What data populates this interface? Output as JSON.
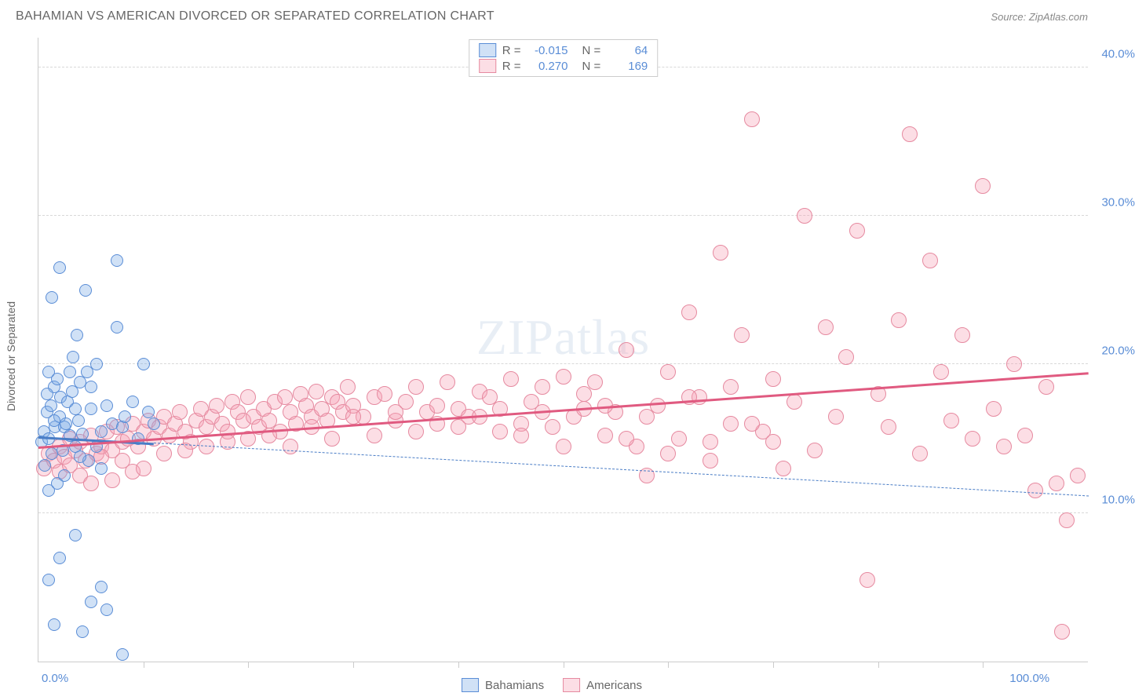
{
  "header": {
    "title": "BAHAMIAN VS AMERICAN DIVORCED OR SEPARATED CORRELATION CHART",
    "source_prefix": "Source: ",
    "source": "ZipAtlas.com"
  },
  "chart": {
    "type": "scatter",
    "ylabel": "Divorced or Separated",
    "watermark": "ZIPatlas",
    "background_color": "#ffffff",
    "grid_color": "#d8d8d8",
    "axis_color": "#cccccc",
    "tick_label_color": "#5a8dd6",
    "xlim": [
      0,
      100
    ],
    "ylim": [
      0,
      42
    ],
    "yticks": [
      {
        "value": 10,
        "label": "10.0%"
      },
      {
        "value": 20,
        "label": "20.0%"
      },
      {
        "value": 30,
        "label": "30.0%"
      },
      {
        "value": 40,
        "label": "40.0%"
      }
    ],
    "xticks_minor": [
      10,
      20,
      30,
      40,
      50,
      60,
      70,
      80,
      90
    ],
    "xtick_left": "0.0%",
    "xtick_right": "100.0%",
    "series": {
      "bahamians": {
        "label": "Bahamians",
        "color_fill": "rgba(120,170,230,0.35)",
        "color_stroke": "#5a8dd6",
        "marker_radius": 8,
        "r_value": "-0.015",
        "n_value": "64",
        "trend": {
          "y_at_x0": 15.2,
          "y_at_x100": 11.2,
          "solid_until_x": 11,
          "color": "#4a7dc6"
        },
        "points": [
          [
            0.3,
            14.8
          ],
          [
            0.5,
            15.5
          ],
          [
            0.6,
            13.2
          ],
          [
            0.8,
            16.8
          ],
          [
            1.0,
            15.0
          ],
          [
            1.2,
            17.2
          ],
          [
            1.3,
            14.0
          ],
          [
            1.5,
            18.5
          ],
          [
            1.6,
            15.8
          ],
          [
            1.8,
            19.0
          ],
          [
            2.0,
            16.5
          ],
          [
            2.1,
            17.8
          ],
          [
            2.3,
            14.2
          ],
          [
            2.5,
            15.8
          ],
          [
            2.6,
            16.0
          ],
          [
            2.8,
            17.5
          ],
          [
            3.0,
            15.2
          ],
          [
            3.2,
            18.2
          ],
          [
            3.3,
            20.5
          ],
          [
            3.5,
            14.5
          ],
          [
            3.7,
            22.0
          ],
          [
            3.8,
            16.2
          ],
          [
            4.0,
            18.8
          ],
          [
            4.2,
            15.3
          ],
          [
            4.5,
            25.0
          ],
          [
            4.6,
            19.5
          ],
          [
            4.8,
            13.5
          ],
          [
            5.0,
            17.0
          ],
          [
            0.8,
            18.0
          ],
          [
            1.0,
            19.5
          ],
          [
            1.3,
            24.5
          ],
          [
            1.5,
            16.2
          ],
          [
            2.0,
            26.5
          ],
          [
            3.5,
            17.0
          ],
          [
            4.0,
            13.8
          ],
          [
            1.0,
            11.5
          ],
          [
            1.8,
            12.0
          ],
          [
            5.5,
            14.5
          ],
          [
            6.0,
            15.5
          ],
          [
            6.5,
            17.2
          ],
          [
            7.0,
            16.0
          ],
          [
            7.5,
            27.0
          ],
          [
            8.0,
            15.8
          ],
          [
            8.2,
            16.5
          ],
          [
            9.0,
            17.5
          ],
          [
            9.5,
            15.0
          ],
          [
            10.0,
            20.0
          ],
          [
            10.5,
            16.8
          ],
          [
            11.0,
            16.0
          ],
          [
            5.0,
            18.5
          ],
          [
            5.5,
            20.0
          ],
          [
            6.0,
            13.0
          ],
          [
            2.5,
            12.5
          ],
          [
            1.0,
            5.5
          ],
          [
            2.0,
            7.0
          ],
          [
            3.5,
            8.5
          ],
          [
            5.0,
            4.0
          ],
          [
            6.0,
            5.0
          ],
          [
            6.5,
            3.5
          ],
          [
            8.0,
            0.5
          ],
          [
            1.5,
            2.5
          ],
          [
            4.2,
            2.0
          ],
          [
            3.0,
            19.5
          ],
          [
            7.5,
            22.5
          ]
        ]
      },
      "americans": {
        "label": "Americans",
        "color_fill": "rgba(245,160,180,0.35)",
        "color_stroke": "#e68aa0",
        "marker_radius": 10,
        "r_value": "0.270",
        "n_value": "169",
        "trend": {
          "y_at_x0": 14.5,
          "y_at_x100": 19.5,
          "color": "#e05a80"
        },
        "points": [
          [
            0.5,
            13.0
          ],
          [
            1.0,
            14.0
          ],
          [
            1.5,
            13.5
          ],
          [
            2.0,
            14.5
          ],
          [
            2.5,
            13.8
          ],
          [
            3.0,
            15.0
          ],
          [
            3.5,
            14.2
          ],
          [
            4.0,
            14.8
          ],
          [
            4.5,
            13.5
          ],
          [
            5.0,
            15.2
          ],
          [
            5.5,
            14.0
          ],
          [
            6.0,
            14.5
          ],
          [
            6.5,
            15.5
          ],
          [
            7.0,
            14.2
          ],
          [
            7.5,
            15.8
          ],
          [
            8.0,
            14.8
          ],
          [
            8.5,
            15.0
          ],
          [
            9.0,
            16.0
          ],
          [
            9.5,
            14.5
          ],
          [
            10.0,
            15.5
          ],
          [
            10.5,
            16.2
          ],
          [
            11.0,
            15.0
          ],
          [
            11.5,
            15.8
          ],
          [
            12.0,
            16.5
          ],
          [
            12.5,
            15.2
          ],
          [
            13.0,
            16.0
          ],
          [
            13.5,
            16.8
          ],
          [
            14.0,
            15.5
          ],
          [
            14.5,
            14.8
          ],
          [
            15.0,
            16.2
          ],
          [
            15.5,
            17.0
          ],
          [
            16.0,
            15.8
          ],
          [
            16.5,
            16.5
          ],
          [
            17.0,
            17.2
          ],
          [
            17.5,
            16.0
          ],
          [
            18.0,
            15.5
          ],
          [
            18.5,
            17.5
          ],
          [
            19.0,
            16.8
          ],
          [
            19.5,
            16.2
          ],
          [
            20.0,
            17.8
          ],
          [
            20.5,
            16.5
          ],
          [
            21.0,
            15.8
          ],
          [
            21.5,
            17.0
          ],
          [
            22.0,
            16.2
          ],
          [
            22.5,
            17.5
          ],
          [
            23.0,
            15.5
          ],
          [
            23.5,
            17.8
          ],
          [
            24.0,
            16.8
          ],
          [
            24.5,
            16.0
          ],
          [
            25.0,
            18.0
          ],
          [
            25.5,
            17.2
          ],
          [
            26.0,
            16.5
          ],
          [
            26.5,
            18.2
          ],
          [
            27.0,
            17.0
          ],
          [
            27.5,
            16.2
          ],
          [
            28.0,
            17.8
          ],
          [
            28.5,
            17.5
          ],
          [
            29.0,
            16.8
          ],
          [
            29.5,
            18.5
          ],
          [
            30.0,
            17.2
          ],
          [
            31.0,
            16.5
          ],
          [
            32.0,
            17.8
          ],
          [
            33.0,
            18.0
          ],
          [
            34.0,
            16.2
          ],
          [
            35.0,
            17.5
          ],
          [
            36.0,
            18.5
          ],
          [
            37.0,
            16.8
          ],
          [
            38.0,
            17.2
          ],
          [
            39.0,
            18.8
          ],
          [
            40.0,
            17.0
          ],
          [
            41.0,
            16.5
          ],
          [
            42.0,
            18.2
          ],
          [
            43.0,
            17.8
          ],
          [
            44.0,
            15.5
          ],
          [
            45.0,
            19.0
          ],
          [
            46.0,
            16.0
          ],
          [
            47.0,
            17.5
          ],
          [
            48.0,
            18.5
          ],
          [
            49.0,
            15.8
          ],
          [
            50.0,
            19.2
          ],
          [
            51.0,
            16.5
          ],
          [
            52.0,
            17.0
          ],
          [
            53.0,
            18.8
          ],
          [
            54.0,
            15.2
          ],
          [
            55.0,
            16.8
          ],
          [
            56.0,
            21.0
          ],
          [
            57.0,
            14.5
          ],
          [
            58.0,
            12.5
          ],
          [
            59.0,
            17.2
          ],
          [
            60.0,
            19.5
          ],
          [
            61.0,
            15.0
          ],
          [
            62.0,
            23.5
          ],
          [
            63.0,
            17.8
          ],
          [
            64.0,
            14.8
          ],
          [
            65.0,
            27.5
          ],
          [
            66.0,
            16.0
          ],
          [
            67.0,
            22.0
          ],
          [
            68.0,
            36.5
          ],
          [
            69.0,
            15.5
          ],
          [
            70.0,
            19.0
          ],
          [
            71.0,
            13.0
          ],
          [
            72.0,
            17.5
          ],
          [
            73.0,
            30.0
          ],
          [
            74.0,
            14.2
          ],
          [
            75.0,
            22.5
          ],
          [
            76.0,
            16.5
          ],
          [
            77.0,
            20.5
          ],
          [
            78.0,
            29.0
          ],
          [
            79.0,
            5.5
          ],
          [
            80.0,
            18.0
          ],
          [
            81.0,
            15.8
          ],
          [
            82.0,
            23.0
          ],
          [
            83.0,
            35.5
          ],
          [
            84.0,
            14.0
          ],
          [
            85.0,
            27.0
          ],
          [
            86.0,
            19.5
          ],
          [
            87.0,
            16.2
          ],
          [
            88.0,
            22.0
          ],
          [
            89.0,
            15.0
          ],
          [
            90.0,
            32.0
          ],
          [
            91.0,
            17.0
          ],
          [
            92.0,
            14.5
          ],
          [
            93.0,
            20.0
          ],
          [
            94.0,
            15.2
          ],
          [
            95.0,
            11.5
          ],
          [
            96.0,
            18.5
          ],
          [
            97.0,
            12.0
          ],
          [
            98.0,
            9.5
          ],
          [
            99.0,
            12.5
          ],
          [
            2.0,
            12.8
          ],
          [
            3.0,
            13.2
          ],
          [
            4.0,
            12.5
          ],
          [
            5.0,
            12.0
          ],
          [
            6.0,
            13.8
          ],
          [
            7.0,
            12.2
          ],
          [
            8.0,
            13.5
          ],
          [
            9.0,
            12.8
          ],
          [
            10.0,
            13.0
          ],
          [
            12.0,
            14.0
          ],
          [
            14.0,
            14.2
          ],
          [
            16.0,
            14.5
          ],
          [
            18.0,
            14.8
          ],
          [
            20.0,
            15.0
          ],
          [
            22.0,
            15.2
          ],
          [
            24.0,
            14.5
          ],
          [
            26.0,
            15.8
          ],
          [
            28.0,
            15.0
          ],
          [
            30.0,
            16.5
          ],
          [
            32.0,
            15.2
          ],
          [
            34.0,
            16.8
          ],
          [
            36.0,
            15.5
          ],
          [
            38.0,
            16.0
          ],
          [
            40.0,
            15.8
          ],
          [
            42.0,
            16.5
          ],
          [
            44.0,
            17.0
          ],
          [
            46.0,
            15.2
          ],
          [
            48.0,
            16.8
          ],
          [
            50.0,
            14.5
          ],
          [
            52.0,
            18.0
          ],
          [
            54.0,
            17.2
          ],
          [
            56.0,
            15.0
          ],
          [
            58.0,
            16.5
          ],
          [
            60.0,
            14.0
          ],
          [
            62.0,
            17.8
          ],
          [
            64.0,
            13.5
          ],
          [
            66.0,
            18.5
          ],
          [
            68.0,
            16.0
          ],
          [
            70.0,
            14.8
          ],
          [
            97.5,
            2.0
          ]
        ]
      }
    },
    "legend_top": {
      "r_label": "R =",
      "n_label": "N ="
    },
    "legend_bottom": {
      "bahamians": "Bahamians",
      "americans": "Americans"
    }
  }
}
